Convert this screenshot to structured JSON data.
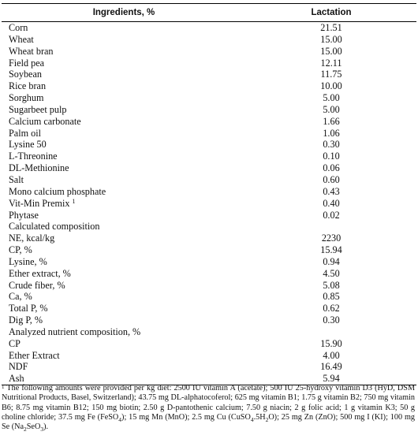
{
  "table": {
    "header": {
      "ingredients": "Ingredients, %",
      "lactation": "Lactation"
    },
    "rows": [
      {
        "label": "Corn",
        "value": "21.51"
      },
      {
        "label": "Wheat",
        "value": "15.00"
      },
      {
        "label": "Wheat bran",
        "value": "15.00"
      },
      {
        "label": "Field pea",
        "value": "12.11"
      },
      {
        "label": "Soybean",
        "value": "11.75"
      },
      {
        "label": "Rice bran",
        "value": "10.00"
      },
      {
        "label": "Sorghum",
        "value": "5.00"
      },
      {
        "label": "Sugarbeet pulp",
        "value": "5.00"
      },
      {
        "label": "Calcium carbonate",
        "value": "1.66"
      },
      {
        "label": "Palm oil",
        "value": "1.06"
      },
      {
        "label": "Lysine 50",
        "value": "0.30"
      },
      {
        "label": "L-Threonine",
        "value": "0.10"
      },
      {
        "label": "DL-Methionine",
        "value": "0.06"
      },
      {
        "label": "Salt",
        "value": "0.60"
      },
      {
        "label": "Mono calcium phosphate",
        "value": "0.43"
      },
      {
        "label": "Vit-Min Premix",
        "sup": "1",
        "value": "0.40"
      },
      {
        "label": "Phytase",
        "value": "0.02"
      },
      {
        "label": "Calculated composition",
        "value": ""
      },
      {
        "label": "NE, kcal/kg",
        "value": "2230"
      },
      {
        "label": "CP, %",
        "value": "15.94"
      },
      {
        "label": "Lysine, %",
        "value": "0.94"
      },
      {
        "label": "Ether extract, %",
        "value": "4.50"
      },
      {
        "label": "Crude fiber, %",
        "value": "5.08"
      },
      {
        "label": "Ca, %",
        "value": "0.85"
      },
      {
        "label": "Total P, %",
        "value": "0.62"
      },
      {
        "label": "Dig P, %",
        "value": "0.30"
      },
      {
        "label": "Analyzed nutrient composition, %",
        "value": ""
      },
      {
        "label": "CP",
        "value": "15.90"
      },
      {
        "label": "Ether Extract",
        "value": "4.00"
      },
      {
        "label": "NDF",
        "value": "16.49"
      },
      {
        "label": "Ash",
        "value": "5.94"
      }
    ]
  },
  "footnote": {
    "marker": "1",
    "part1": " The following amounts were provided per kg diet: 2500 IU vitamin A (acetate); 500 IU 25-hydroxy vitamin D3 (HyD, DSM Nutritional Products, Basel, Switzerland); 43.75 mg DL-alphatocoferol; 625 mg vitamin B1; 1.75 g vitamin B2; 750 mg vitamin B6; 8.75 mg vitamin B12; 150 mg biotin; 2.50 g D-pantothenic calcium; 7.50 g niacin; 2 g folic acid; 1 g vitamin K3; 50 g choline chloride; 37.5 mg Fe (FeSO",
    "sub1": "4",
    "part2": "); 15 mg Mn (MnO); 2.5 mg Cu (CuSO",
    "sub2": "4",
    "part3": ".5H",
    "sub3": "2",
    "part4": "O); 25 mg Zn (ZnO); 500 mg I (KI); 100 mg Se (Na",
    "sub4": "2",
    "part5": "SeO",
    "sub5": "3",
    "part6": ")."
  }
}
